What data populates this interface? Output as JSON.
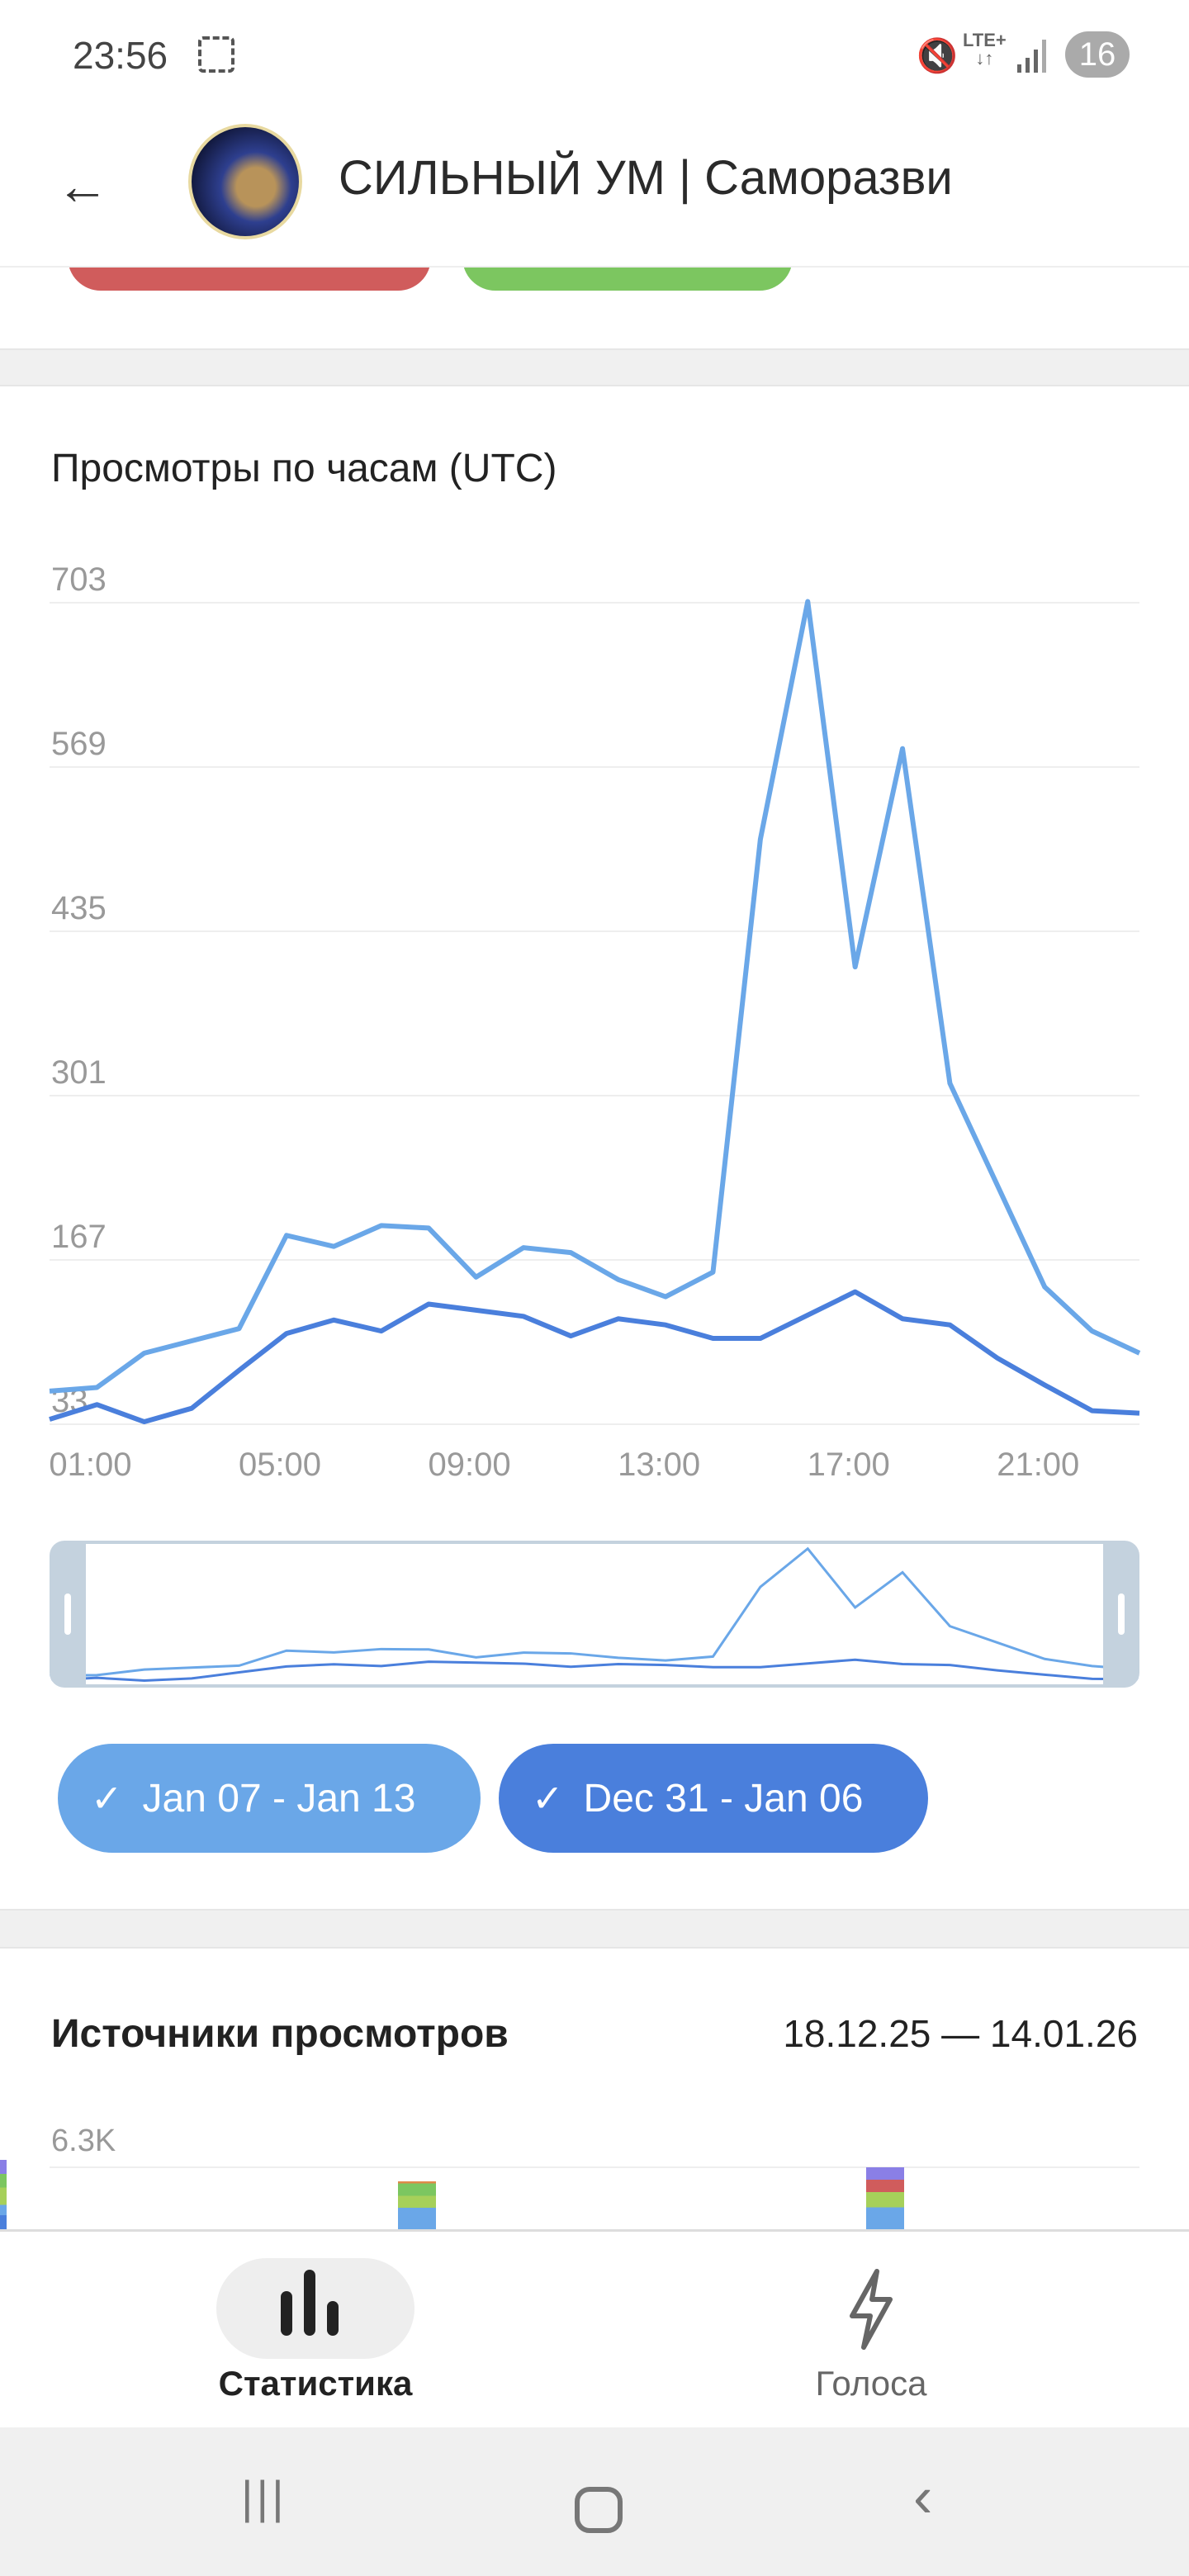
{
  "status_bar": {
    "time": "23:56",
    "network": "LTE+",
    "battery": "16"
  },
  "header": {
    "title": "СИЛЬНЫЙ УМ | Саморазви"
  },
  "hourly_chart": {
    "title": "Просмотры по часам (UTC)"
  },
  "chips": [
    {
      "label": "Jan 07 - Jan 13",
      "color": "#6aa7e8"
    },
    {
      "label": "Dec 31 - Jan 06",
      "color": "#4a7fdc"
    }
  ],
  "chart_data": {
    "type": "line",
    "title": "Просмотры по часам (UTC)",
    "x": [
      "00:00",
      "01:00",
      "02:00",
      "03:00",
      "04:00",
      "05:00",
      "06:00",
      "07:00",
      "08:00",
      "09:00",
      "10:00",
      "11:00",
      "12:00",
      "13:00",
      "14:00",
      "15:00",
      "16:00",
      "17:00",
      "18:00",
      "19:00",
      "20:00",
      "21:00",
      "22:00",
      "23:00"
    ],
    "xticks": [
      "01:00",
      "05:00",
      "09:00",
      "13:00",
      "17:00",
      "21:00"
    ],
    "yticks": [
      "703",
      "569",
      "435",
      "301",
      "167",
      "33"
    ],
    "ylim": [
      33,
      703
    ],
    "grid": true,
    "series": [
      {
        "name": "Jan 07 - Jan 13",
        "color": "#6aa7e8",
        "values": [
          60,
          63,
          91,
          101,
          111,
          187,
          178,
          195,
          193,
          153,
          177,
          173,
          151,
          137,
          157,
          510,
          704,
          406,
          584,
          311,
          228,
          145,
          109,
          91
        ]
      },
      {
        "name": "Dec 31 - Jan 06",
        "color": "#4a7fdc",
        "values": [
          37,
          49,
          35,
          46,
          77,
          107,
          118,
          109,
          131,
          126,
          121,
          105,
          119,
          114,
          103,
          103,
          122,
          141,
          119,
          114,
          87,
          65,
          44,
          42
        ]
      }
    ]
  },
  "sources": {
    "title": "Источники просмотров",
    "date_range": "18.12.25 — 14.01.26",
    "y_max_label": "6.3K"
  },
  "bottom_nav": {
    "items": [
      {
        "label": "Статистика"
      },
      {
        "label": "Голоса"
      }
    ]
  }
}
